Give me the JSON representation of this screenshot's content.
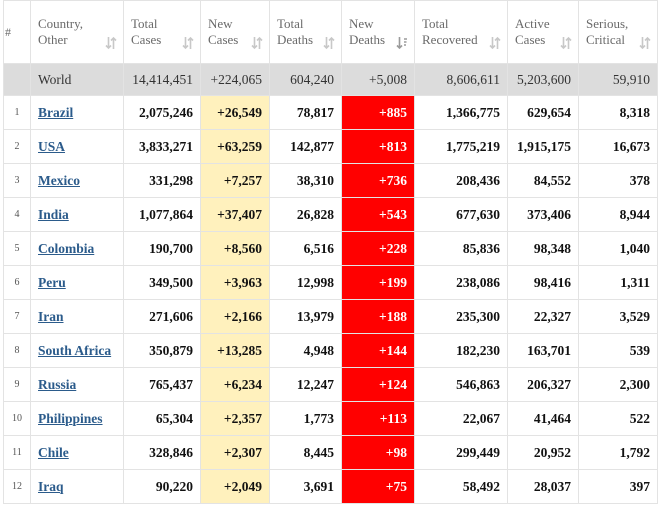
{
  "colors": {
    "header_text": "#6a6a6a",
    "world_row_bg": "#dcdcdc",
    "new_cases_bg": "#fff1bd",
    "new_deaths_bg": "#ff0000",
    "country_link": "#2b5b8b"
  },
  "columns": [
    {
      "key": "num",
      "lines": [
        "#"
      ],
      "sort_icon": "none"
    },
    {
      "key": "country",
      "lines": [
        "Country,",
        "Other"
      ],
      "sort_icon": "sort-arrows-icon"
    },
    {
      "key": "total_cases",
      "lines": [
        "Total",
        "Cases"
      ],
      "sort_icon": "sort-arrows-icon"
    },
    {
      "key": "new_cases",
      "lines": [
        "New",
        "Cases"
      ],
      "sort_icon": "sort-arrows-icon"
    },
    {
      "key": "total_deaths",
      "lines": [
        "Total",
        "Deaths"
      ],
      "sort_icon": "sort-arrows-icon"
    },
    {
      "key": "new_deaths",
      "lines": [
        "New",
        "Deaths"
      ],
      "sort_icon": "sort-desc-icon"
    },
    {
      "key": "total_recovered",
      "lines": [
        "Total",
        "Recovered"
      ],
      "sort_icon": "sort-arrows-icon"
    },
    {
      "key": "active_cases",
      "lines": [
        "Active",
        "Cases"
      ],
      "sort_icon": "sort-arrows-icon"
    },
    {
      "key": "serious_critical",
      "lines": [
        "Serious,",
        "Critical"
      ],
      "sort_icon": "sort-arrows-icon"
    }
  ],
  "world": {
    "num": "",
    "country": "World",
    "total_cases": "14,414,451",
    "new_cases": "+224,065",
    "total_deaths": "604,240",
    "new_deaths": "+5,008",
    "total_recovered": "8,606,611",
    "active_cases": "5,203,600",
    "serious_critical": "59,910"
  },
  "rows": [
    {
      "num": "1",
      "country": "Brazil",
      "total_cases": "2,075,246",
      "new_cases": "+26,549",
      "total_deaths": "78,817",
      "new_deaths": "+885",
      "total_recovered": "1,366,775",
      "active_cases": "629,654",
      "serious_critical": "8,318"
    },
    {
      "num": "2",
      "country": "USA",
      "total_cases": "3,833,271",
      "new_cases": "+63,259",
      "total_deaths": "142,877",
      "new_deaths": "+813",
      "total_recovered": "1,775,219",
      "active_cases": "1,915,175",
      "serious_critical": "16,673"
    },
    {
      "num": "3",
      "country": "Mexico",
      "total_cases": "331,298",
      "new_cases": "+7,257",
      "total_deaths": "38,310",
      "new_deaths": "+736",
      "total_recovered": "208,436",
      "active_cases": "84,552",
      "serious_critical": "378"
    },
    {
      "num": "4",
      "country": "India",
      "total_cases": "1,077,864",
      "new_cases": "+37,407",
      "total_deaths": "26,828",
      "new_deaths": "+543",
      "total_recovered": "677,630",
      "active_cases": "373,406",
      "serious_critical": "8,944"
    },
    {
      "num": "5",
      "country": "Colombia",
      "total_cases": "190,700",
      "new_cases": "+8,560",
      "total_deaths": "6,516",
      "new_deaths": "+228",
      "total_recovered": "85,836",
      "active_cases": "98,348",
      "serious_critical": "1,040"
    },
    {
      "num": "6",
      "country": "Peru",
      "total_cases": "349,500",
      "new_cases": "+3,963",
      "total_deaths": "12,998",
      "new_deaths": "+199",
      "total_recovered": "238,086",
      "active_cases": "98,416",
      "serious_critical": "1,311"
    },
    {
      "num": "7",
      "country": "Iran",
      "total_cases": "271,606",
      "new_cases": "+2,166",
      "total_deaths": "13,979",
      "new_deaths": "+188",
      "total_recovered": "235,300",
      "active_cases": "22,327",
      "serious_critical": "3,529"
    },
    {
      "num": "8",
      "country": "South Africa",
      "total_cases": "350,879",
      "new_cases": "+13,285",
      "total_deaths": "4,948",
      "new_deaths": "+144",
      "total_recovered": "182,230",
      "active_cases": "163,701",
      "serious_critical": "539"
    },
    {
      "num": "9",
      "country": "Russia",
      "total_cases": "765,437",
      "new_cases": "+6,234",
      "total_deaths": "12,247",
      "new_deaths": "+124",
      "total_recovered": "546,863",
      "active_cases": "206,327",
      "serious_critical": "2,300"
    },
    {
      "num": "10",
      "country": "Philippines",
      "total_cases": "65,304",
      "new_cases": "+2,357",
      "total_deaths": "1,773",
      "new_deaths": "+113",
      "total_recovered": "22,067",
      "active_cases": "41,464",
      "serious_critical": "522"
    },
    {
      "num": "11",
      "country": "Chile",
      "total_cases": "328,846",
      "new_cases": "+2,307",
      "total_deaths": "8,445",
      "new_deaths": "+98",
      "total_recovered": "299,449",
      "active_cases": "20,952",
      "serious_critical": "1,792"
    },
    {
      "num": "12",
      "country": "Iraq",
      "total_cases": "90,220",
      "new_cases": "+2,049",
      "total_deaths": "3,691",
      "new_deaths": "+75",
      "total_recovered": "58,492",
      "active_cases": "28,037",
      "serious_critical": "397"
    }
  ]
}
